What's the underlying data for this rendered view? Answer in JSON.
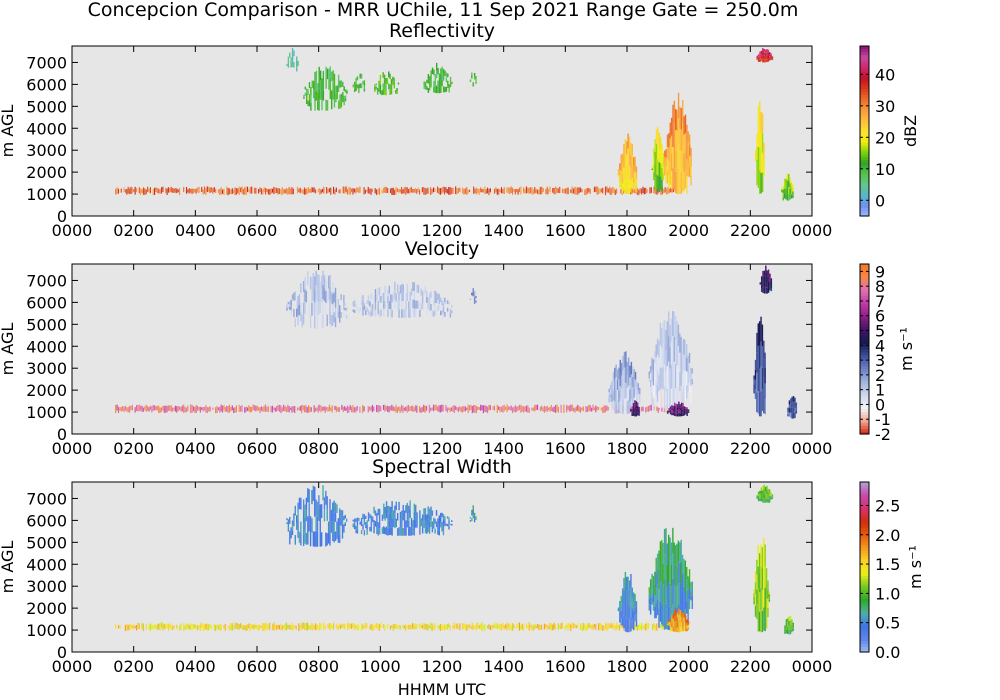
{
  "figure": {
    "suptitle": "Concepcion Comparison - MRR UChile, 11 Sep 2021 Range Gate = 250.0m",
    "xlabel": "HHMM UTC"
  },
  "chart_data": [
    {
      "type": "heatmap",
      "title": "Reflectivity",
      "xlabel": "",
      "ylabel": "m AGL",
      "x_tick_labels": [
        "0000",
        "0200",
        "0400",
        "0600",
        "0800",
        "1000",
        "1200",
        "1400",
        "1600",
        "1800",
        "2000",
        "2200",
        "0000"
      ],
      "y_ticks": [
        0,
        1000,
        2000,
        3000,
        4000,
        5000,
        6000,
        7000
      ],
      "xlim_hours": [
        0,
        24
      ],
      "ylim": [
        0,
        7750
      ],
      "colorbar": {
        "label": "dBZ",
        "range": [
          -5,
          49
        ],
        "ticks": [
          0,
          10,
          20,
          30,
          40
        ],
        "tick_labels": [
          "0",
          "10",
          "20",
          "30",
          "40"
        ],
        "colormap": [
          "#9fb7ff",
          "#6f91ee",
          "#57b8c7",
          "#5fc88a",
          "#58c34a",
          "#2ea32a",
          "#7ad20c",
          "#f1ee0e",
          "#fbe32f",
          "#fdbe3c",
          "#f89b3d",
          "#ec6d2b",
          "#db3c18",
          "#c4122b",
          "#d0266c",
          "#c34aa3",
          "#8c0f6e"
        ]
      },
      "features": [
        {
          "kind": "melting-layer",
          "t_start": 1.4,
          "t_end": 19.5,
          "z_bottom": 950,
          "z_top": 1350,
          "value": 33
        },
        {
          "kind": "cloud",
          "t_start": 6.95,
          "t_end": 7.35,
          "z_bottom": 6500,
          "z_top": 7700,
          "value": 3
        },
        {
          "kind": "cloud",
          "t_start": 7.5,
          "t_end": 8.9,
          "z_bottom": 4800,
          "z_top": 7000,
          "value": 10
        },
        {
          "kind": "cloud",
          "t_start": 9.1,
          "t_end": 9.5,
          "z_bottom": 5600,
          "z_top": 6600,
          "value": 10
        },
        {
          "kind": "cloud",
          "t_start": 9.8,
          "t_end": 10.6,
          "z_bottom": 5500,
          "z_top": 6700,
          "value": 12
        },
        {
          "kind": "cloud",
          "t_start": 11.4,
          "t_end": 12.3,
          "z_bottom": 5600,
          "z_top": 7000,
          "value": 10
        },
        {
          "kind": "cloud",
          "t_start": 12.9,
          "t_end": 13.1,
          "z_bottom": 5900,
          "z_top": 6700,
          "value": 12
        },
        {
          "kind": "convective",
          "t_start": 17.7,
          "t_end": 18.3,
          "z_bottom": 1000,
          "z_top": 3800,
          "value": 25
        },
        {
          "kind": "convective",
          "t_start": 18.8,
          "t_end": 19.2,
          "z_bottom": 1100,
          "z_top": 4300,
          "value": 18
        },
        {
          "kind": "convective",
          "t_start": 19.2,
          "t_end": 20.1,
          "z_bottom": 1000,
          "z_top": 5700,
          "value": 28
        },
        {
          "kind": "convective",
          "t_start": 22.2,
          "t_end": 22.7,
          "z_bottom": 7000,
          "z_top": 7700,
          "value": 40
        },
        {
          "kind": "convective",
          "t_start": 22.15,
          "t_end": 22.45,
          "z_bottom": 1000,
          "z_top": 5600,
          "value": 20
        },
        {
          "kind": "convective",
          "t_start": 23.0,
          "t_end": 23.4,
          "z_bottom": 700,
          "z_top": 2000,
          "value": 15
        }
      ]
    },
    {
      "type": "heatmap",
      "title": "Velocity",
      "xlabel": "",
      "ylabel": "m AGL",
      "x_tick_labels": [
        "0000",
        "0200",
        "0400",
        "0600",
        "0800",
        "1000",
        "1200",
        "1400",
        "1600",
        "1800",
        "2000",
        "2200",
        "0000"
      ],
      "y_ticks": [
        0,
        1000,
        2000,
        3000,
        4000,
        5000,
        6000,
        7000
      ],
      "xlim_hours": [
        0,
        24
      ],
      "ylim": [
        0,
        7750
      ],
      "colorbar": {
        "label": "m s⁻¹",
        "range": [
          -2,
          9.5
        ],
        "ticks": [
          -2,
          -1,
          0,
          1,
          2,
          3,
          4,
          5,
          6,
          7,
          8,
          9
        ],
        "tick_labels": [
          "-2",
          "-1",
          "0",
          "1",
          "2",
          "3",
          "4",
          "5",
          "6",
          "7",
          "8",
          "9"
        ],
        "colormap": [
          "#c9220c",
          "#f4a58f",
          "#f3f3f7",
          "#cfd8ee",
          "#a3b5e0",
          "#6b83c6",
          "#3f4f9a",
          "#121b52",
          "#431463",
          "#8c1f86",
          "#c03ba8",
          "#e06fb0",
          "#f6884c",
          "#f87822"
        ]
      },
      "features": [
        {
          "kind": "melting-layer",
          "t_start": 1.4,
          "t_end": 19.5,
          "z_bottom": 950,
          "z_top": 1350,
          "value": 8.0
        },
        {
          "kind": "cloud",
          "t_start": 6.95,
          "t_end": 8.9,
          "z_bottom": 4800,
          "z_top": 7700,
          "value": 1.2
        },
        {
          "kind": "cloud",
          "t_start": 9.1,
          "t_end": 12.3,
          "z_bottom": 5300,
          "z_top": 7000,
          "value": 1.0
        },
        {
          "kind": "cloud",
          "t_start": 12.9,
          "t_end": 13.1,
          "z_bottom": 5900,
          "z_top": 6700,
          "value": 2.0
        },
        {
          "kind": "convective",
          "t_start": 17.4,
          "t_end": 18.4,
          "z_bottom": 900,
          "z_top": 3800,
          "value": 1.5
        },
        {
          "kind": "convective",
          "t_start": 18.7,
          "t_end": 20.1,
          "z_bottom": 1000,
          "z_top": 5800,
          "value": 1.0
        },
        {
          "kind": "convective",
          "t_start": 18.1,
          "t_end": 18.4,
          "z_bottom": 800,
          "z_top": 1600,
          "value": 5.5
        },
        {
          "kind": "convective",
          "t_start": 19.3,
          "t_end": 20.0,
          "z_bottom": 800,
          "z_top": 1500,
          "value": 5.5
        },
        {
          "kind": "convective",
          "t_start": 22.1,
          "t_end": 22.5,
          "z_bottom": 800,
          "z_top": 5700,
          "value": 3.5
        },
        {
          "kind": "convective",
          "t_start": 22.3,
          "t_end": 22.7,
          "z_bottom": 6400,
          "z_top": 7700,
          "value": 5.0
        },
        {
          "kind": "convective",
          "t_start": 23.2,
          "t_end": 23.5,
          "z_bottom": 700,
          "z_top": 1900,
          "value": 3.5
        }
      ]
    },
    {
      "type": "heatmap",
      "title": "Spectral Width",
      "xlabel": "HHMM UTC",
      "ylabel": "m AGL",
      "x_tick_labels": [
        "0000",
        "0200",
        "0400",
        "0600",
        "0800",
        "1000",
        "1200",
        "1400",
        "1600",
        "1800",
        "2000",
        "2200",
        "0000"
      ],
      "y_ticks": [
        0,
        1000,
        2000,
        3000,
        4000,
        5000,
        6000,
        7000
      ],
      "xlim_hours": [
        0,
        24
      ],
      "ylim": [
        0,
        7750
      ],
      "colorbar": {
        "label": "m s⁻¹",
        "range": [
          0,
          2.9
        ],
        "ticks": [
          0.0,
          0.5,
          1.0,
          1.5,
          2.0,
          2.5
        ],
        "tick_labels": [
          "0.0",
          "0.5",
          "1.0",
          "1.5",
          "2.0",
          "2.5"
        ],
        "colormap": [
          "#a4b8f6",
          "#5e86ea",
          "#3f75e6",
          "#4fb0a8",
          "#2fa82a",
          "#74c623",
          "#e9ef1a",
          "#fbd327",
          "#f29a1e",
          "#e55a10",
          "#cf2f0d",
          "#d8306d",
          "#c64aaa",
          "#b4a0d8"
        ]
      },
      "features": [
        {
          "kind": "melting-layer",
          "t_start": 1.4,
          "t_end": 19.5,
          "z_bottom": 950,
          "z_top": 1350,
          "value": 1.5
        },
        {
          "kind": "cloud",
          "t_start": 6.95,
          "t_end": 8.9,
          "z_bottom": 4800,
          "z_top": 7700,
          "value": 0.45
        },
        {
          "kind": "cloud",
          "t_start": 9.1,
          "t_end": 12.3,
          "z_bottom": 5300,
          "z_top": 7000,
          "value": 0.45
        },
        {
          "kind": "cloud",
          "t_start": 12.9,
          "t_end": 13.1,
          "z_bottom": 5900,
          "z_top": 6700,
          "value": 0.6
        },
        {
          "kind": "convective",
          "t_start": 17.7,
          "t_end": 18.3,
          "z_bottom": 900,
          "z_top": 3800,
          "value": 0.5
        },
        {
          "kind": "convective",
          "t_start": 18.7,
          "t_end": 20.1,
          "z_bottom": 1000,
          "z_top": 5900,
          "value": 0.7
        },
        {
          "kind": "convective",
          "t_start": 19.3,
          "t_end": 20.0,
          "z_bottom": 900,
          "z_top": 2000,
          "value": 1.8
        },
        {
          "kind": "convective",
          "t_start": 22.1,
          "t_end": 22.6,
          "z_bottom": 900,
          "z_top": 5600,
          "value": 1.2
        },
        {
          "kind": "convective",
          "t_start": 22.2,
          "t_end": 22.7,
          "z_bottom": 6800,
          "z_top": 7700,
          "value": 1.0
        },
        {
          "kind": "convective",
          "t_start": 23.1,
          "t_end": 23.4,
          "z_bottom": 800,
          "z_top": 1800,
          "value": 1.0
        }
      ]
    }
  ]
}
